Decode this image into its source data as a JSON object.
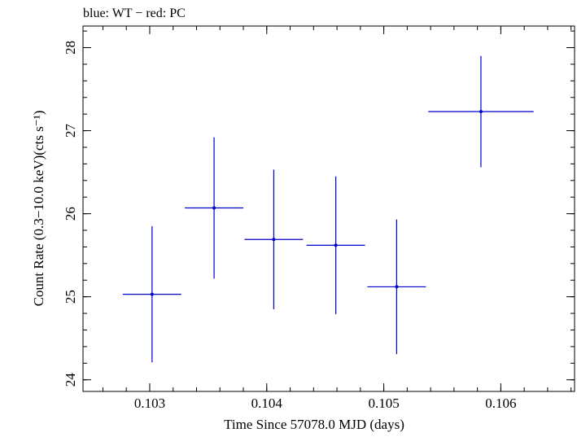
{
  "chart_data": {
    "type": "scatter",
    "title": "blue: WT − red: PC",
    "xlabel": "Time Since 57078.0 MJD (days)",
    "ylabel": "Count Rate (0.3−10.0 keV)(cts s⁻¹)",
    "xlim": [
      0.10243,
      0.10663
    ],
    "ylim": [
      23.86,
      28.26
    ],
    "xticks": [
      0.103,
      0.104,
      0.105,
      0.106
    ],
    "xtick_labels": [
      "0.103",
      "0.104",
      "0.105",
      "0.106"
    ],
    "yticks": [
      24,
      25,
      26,
      27,
      28
    ],
    "ytick_labels": [
      "24",
      "25",
      "26",
      "27",
      "28"
    ],
    "x_minor_step": 0.0002,
    "y_minor_step": 0.2,
    "grid": false,
    "legend": "none",
    "series": [
      {
        "color": "#0000cc",
        "points": [
          {
            "x": 0.10302,
            "y": 25.03,
            "xerr": 0.00025,
            "yerr": 0.82
          },
          {
            "x": 0.10355,
            "y": 26.07,
            "xerr": 0.00025,
            "yerr": 0.85
          },
          {
            "x": 0.10406,
            "y": 25.69,
            "xerr": 0.00025,
            "yerr": 0.84
          },
          {
            "x": 0.10459,
            "y": 25.62,
            "xerr": 0.00025,
            "yerr": 0.83
          },
          {
            "x": 0.10511,
            "y": 25.12,
            "xerr": 0.00025,
            "yerr": 0.81
          },
          {
            "x": 0.10583,
            "y": 27.23,
            "xerr": 0.00045,
            "yerr": 0.67
          }
        ]
      }
    ]
  }
}
